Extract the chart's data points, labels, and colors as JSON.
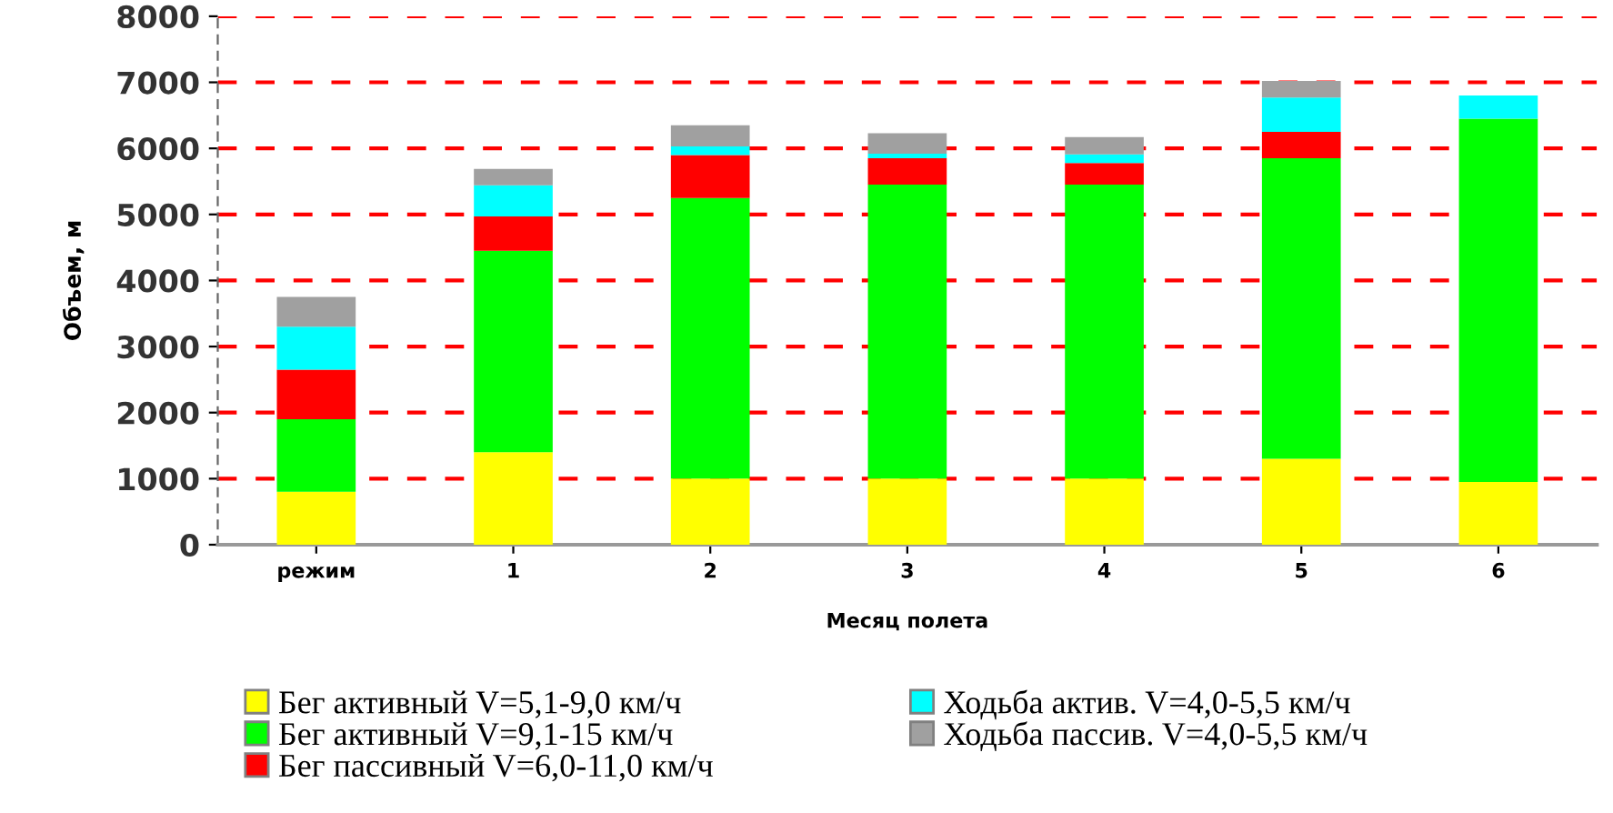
{
  "chart_data": {
    "type": "bar",
    "stacked": true,
    "xlabel": "Месяц полета",
    "ylabel": "Объем, м",
    "categories": [
      "режим",
      "1",
      "2",
      "3",
      "4",
      "5",
      "6"
    ],
    "series": [
      {
        "name": "Бег активный V=5,1-9,0 км/ч",
        "color": "#ffff00",
        "values": [
          800,
          1400,
          1000,
          1000,
          1000,
          1300,
          950
        ]
      },
      {
        "name": "Бег активный V=9,1-15 км/ч",
        "color": "#00ff00",
        "values": [
          1100,
          3050,
          4250,
          4450,
          4450,
          4550,
          5500
        ]
      },
      {
        "name": "Бег пассивный V=6,0-11,0 км/ч",
        "color": "#ff0000",
        "values": [
          750,
          520,
          650,
          400,
          330,
          400,
          0
        ]
      },
      {
        "name": "Ходьба актив. V=4,0-5,5 км/ч",
        "color": "#00ffff",
        "values": [
          650,
          470,
          130,
          70,
          130,
          520,
          350
        ]
      },
      {
        "name": "Ходьба пассив. V=4,0-5,5 км/ч",
        "color": "#a0a0a0",
        "values": [
          450,
          250,
          320,
          310,
          260,
          250,
          0
        ]
      }
    ],
    "ylim": [
      0,
      8000
    ],
    "yticks": [
      0,
      1000,
      2000,
      3000,
      4000,
      5000,
      6000,
      7000,
      8000
    ],
    "grid": "y",
    "legend": "bottom"
  }
}
